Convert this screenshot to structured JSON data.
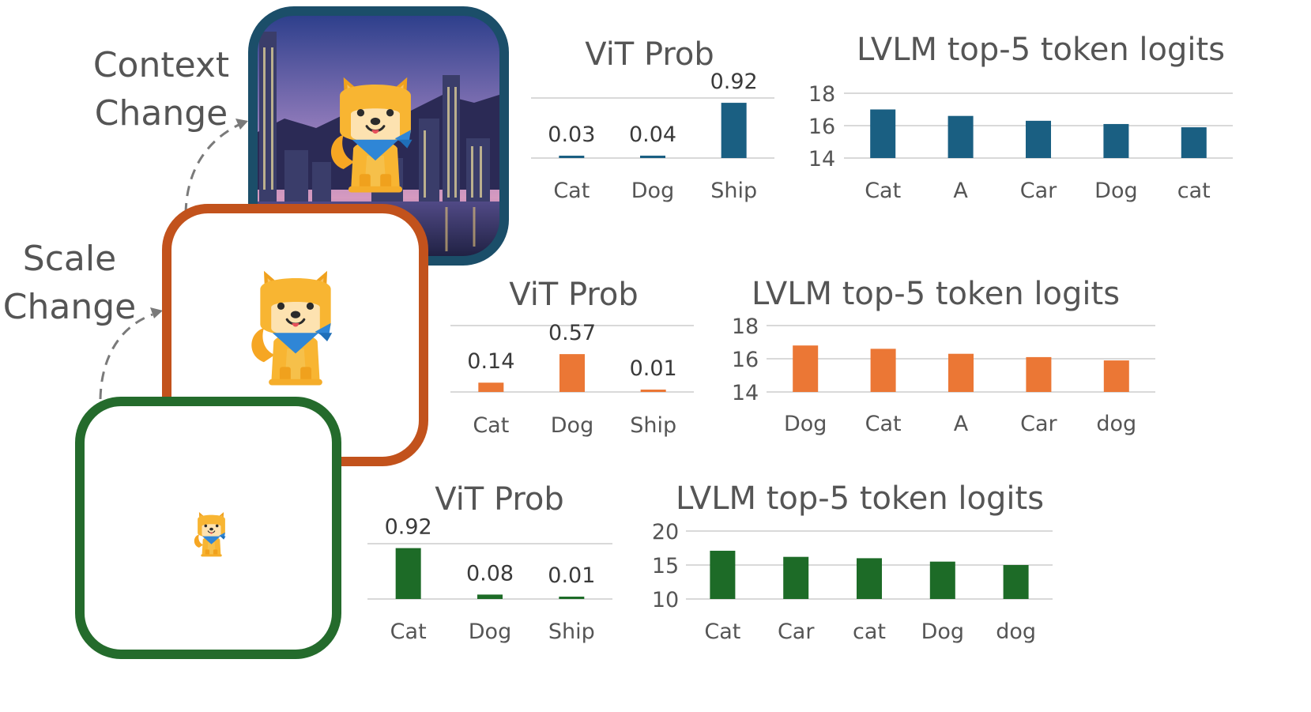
{
  "annotations": {
    "context_change": [
      "Context",
      "Change"
    ],
    "scale_change": [
      "Scale",
      "Change"
    ]
  },
  "colors": {
    "blue": "#1a5f82",
    "orange": "#eb7735",
    "green": "#1d6b27",
    "frame_blue": "#1b4e69",
    "frame_orange": "#c2521c",
    "frame_green": "#246b2c"
  },
  "icons": [
    "shiba-dog-icon"
  ],
  "chart_data": [
    {
      "id": "context-vit",
      "type": "bar",
      "title": "ViT Prob",
      "categories": [
        "Cat",
        "Dog",
        "Ship"
      ],
      "values": [
        0.03,
        0.04,
        0.92
      ],
      "value_labels": [
        "0.03",
        "0.04",
        "0.92"
      ],
      "ylim": [
        0,
        1
      ],
      "color": "#1a5f82",
      "grid": true
    },
    {
      "id": "context-lvlm",
      "type": "bar",
      "title": "LVLM top-5 token logits",
      "categories": [
        "Cat",
        "A",
        "Car",
        "Dog",
        "cat"
      ],
      "values": [
        17.0,
        16.6,
        16.3,
        16.1,
        15.9
      ],
      "yticks": [
        "18",
        "16",
        "14"
      ],
      "ylim": [
        14,
        18
      ],
      "color": "#1a5f82",
      "grid": true
    },
    {
      "id": "scale-vit",
      "type": "bar",
      "title": "ViT Prob",
      "categories": [
        "Cat",
        "Dog",
        "Ship"
      ],
      "values": [
        0.14,
        0.57,
        0.01
      ],
      "value_labels": [
        "0.14",
        "0.57",
        "0.01"
      ],
      "ylim": [
        0,
        1
      ],
      "color": "#eb7735",
      "grid": true
    },
    {
      "id": "scale-lvlm",
      "type": "bar",
      "title": "LVLM top-5 token logits",
      "categories": [
        "Dog",
        "Cat",
        "A",
        "Car",
        "dog"
      ],
      "values": [
        16.8,
        16.6,
        16.3,
        16.1,
        15.9
      ],
      "yticks": [
        "18",
        "16",
        "14"
      ],
      "ylim": [
        14,
        18
      ],
      "color": "#eb7735",
      "grid": true
    },
    {
      "id": "original-vit",
      "type": "bar",
      "title": "ViT Prob",
      "categories": [
        "Cat",
        "Dog",
        "Ship"
      ],
      "values": [
        0.92,
        0.08,
        0.01
      ],
      "value_labels": [
        "0.92",
        "0.08",
        "0.01"
      ],
      "ylim": [
        0,
        1
      ],
      "color": "#1d6b27",
      "grid": true
    },
    {
      "id": "original-lvlm",
      "type": "bar",
      "title": "LVLM top-5 token logits",
      "categories": [
        "Cat",
        "Car",
        "cat",
        "Dog",
        "dog"
      ],
      "values": [
        17.1,
        16.2,
        16.0,
        15.5,
        15.0
      ],
      "yticks": [
        "20",
        "15",
        "10"
      ],
      "ylim": [
        10,
        20
      ],
      "color": "#1d6b27",
      "grid": true
    }
  ]
}
